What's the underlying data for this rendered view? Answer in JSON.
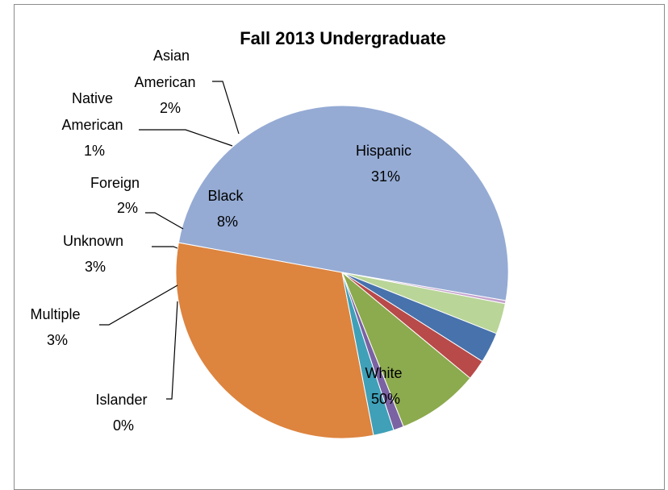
{
  "chart_data": {
    "type": "pie",
    "title": "Fall 2013 Undergraduate",
    "slices": [
      {
        "label": "Hispanic",
        "pct_label": "31%",
        "value": 31,
        "color": "#DD843F"
      },
      {
        "label": "White",
        "pct_label": "50%",
        "value": 50,
        "color": "#95ABD4"
      },
      {
        "label": "Islander",
        "pct_label": "0%",
        "value": 0.3,
        "color": "#C6A3CF"
      },
      {
        "label": "Multiple",
        "pct_label": "3%",
        "value": 3,
        "color": "#B9D598"
      },
      {
        "label": "Unknown",
        "pct_label": "3%",
        "value": 3,
        "color": "#4772AC"
      },
      {
        "label": "Foreign",
        "pct_label": "2%",
        "value": 2,
        "color": "#B84A49"
      },
      {
        "label": "Black",
        "pct_label": "8%",
        "value": 8,
        "color": "#8CAA4E"
      },
      {
        "label": "Native American",
        "pct_label": "1%",
        "value": 1,
        "color": "#7A62A3"
      },
      {
        "label": "Asian American",
        "pct_label": "2%",
        "value": 2,
        "color": "#3FA0B8"
      }
    ]
  }
}
